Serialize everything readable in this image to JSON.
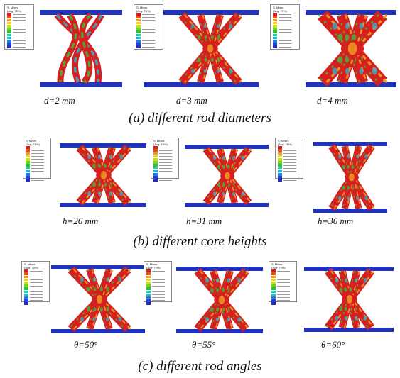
{
  "rows": [
    {
      "caption": "(a) different rod diameters",
      "panels": [
        {
          "label": "d=2 mm",
          "var": "d",
          "rest": "=2 mm"
        },
        {
          "label": "d=3 mm",
          "var": "d",
          "rest": "=3 mm"
        },
        {
          "label": "d=4 mm",
          "var": "d",
          "rest": "=4 mm"
        }
      ]
    },
    {
      "caption": "(b) different core heights",
      "panels": [
        {
          "label": "h=26 mm",
          "var": "h",
          "rest": "=26 mm"
        },
        {
          "label": "h=31 mm",
          "var": "h",
          "rest": "=31 mm"
        },
        {
          "label": "h=36 mm",
          "var": "h",
          "rest": "=36 mm"
        }
      ]
    },
    {
      "caption": "(c) different rod angles",
      "panels": [
        {
          "label": "θ=50°",
          "var": "θ",
          "rest": "=50°"
        },
        {
          "label": "θ=55°",
          "var": "θ",
          "rest": "=55°"
        },
        {
          "label": "θ=60°",
          "var": "θ",
          "rest": "=60°"
        }
      ]
    }
  ],
  "legend": {
    "title_line1": "S, Mises",
    "title_line2": "(Avg: 75%)",
    "colors": [
      "#d42020",
      "#e8501a",
      "#f39a1a",
      "#f5d21b",
      "#c7e21b",
      "#6fd41b",
      "#1fc83a",
      "#1ecfa0",
      "#1eb6e0",
      "#1f7de0",
      "#2042d6",
      "#2a2ab5"
    ]
  },
  "colors": {
    "plate": "#2233bb",
    "rod_high": "#d61f1f",
    "rod_mid": "#f0a020",
    "rod_low": "#32c43c",
    "rod_cool": "#27b8d8"
  }
}
